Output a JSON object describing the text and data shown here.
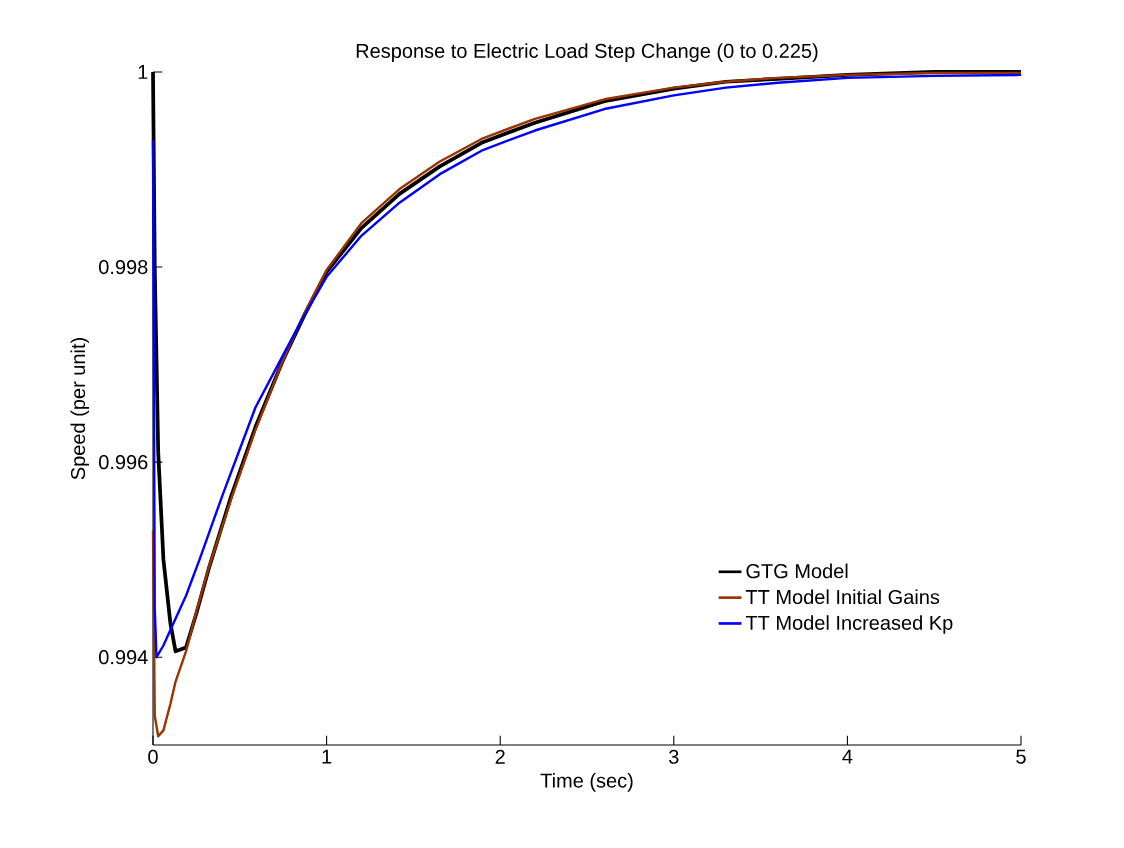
{
  "chart_data": {
    "type": "line",
    "title": "Response to Electric Load Step Change (0 to 0.225)",
    "xlabel": "Time (sec)",
    "ylabel": "Speed (per unit)",
    "xlim": [
      0,
      5
    ],
    "ylim": [
      0.9931,
      1
    ],
    "xticks": [
      0,
      1,
      2,
      3,
      4,
      5
    ],
    "yticks": [
      0.994,
      0.996,
      0.998,
      1
    ],
    "grid": false,
    "legend": "bottom right",
    "line_style": "solid",
    "marker": "none",
    "series": [
      {
        "name": "GTG Model",
        "color": "#000000",
        "x": [
          0,
          0.01,
          0.03,
          0.06,
          0.1,
          0.13,
          0.19,
          0.25,
          0.32,
          0.45,
          0.59,
          0.75,
          0.87,
          1.0,
          1.2,
          1.42,
          1.65,
          1.9,
          2.2,
          2.6,
          3.0,
          3.3,
          3.6,
          4.0,
          4.5,
          5.0
        ],
        "values": [
          1.0,
          0.998,
          0.9961,
          0.995,
          0.99435,
          0.99406,
          0.9941,
          0.99445,
          0.9949,
          0.99565,
          0.99636,
          0.99705,
          0.9975,
          0.99795,
          0.9984,
          0.99875,
          0.99903,
          0.99928,
          0.99948,
          0.9997,
          0.99983,
          0.9999,
          0.99993,
          0.99997,
          1.0,
          1.0
        ]
      },
      {
        "name": "TT Model Initial Gains",
        "color": "#993300",
        "x": [
          0,
          0.01,
          0.03,
          0.06,
          0.1,
          0.13,
          0.19,
          0.25,
          0.32,
          0.45,
          0.59,
          0.75,
          0.87,
          1.0,
          1.2,
          1.42,
          1.65,
          1.9,
          2.2,
          2.6,
          3.0,
          3.3,
          3.6,
          4.0,
          4.5,
          5.0
        ],
        "values": [
          0.9953,
          0.9934,
          0.99319,
          0.99325,
          0.99352,
          0.99375,
          0.99406,
          0.99447,
          0.99491,
          0.99562,
          0.99633,
          0.99705,
          0.99752,
          0.99797,
          0.99845,
          0.9988,
          0.99908,
          0.99932,
          0.99952,
          0.99972,
          0.99984,
          0.9999,
          0.99994,
          0.99997,
          0.99999,
          0.99999
        ]
      },
      {
        "name": "TT Model Increased Kp",
        "color": "#0000ff",
        "x": [
          0,
          0.01,
          0.02,
          0.06,
          0.1,
          0.19,
          0.27,
          0.4,
          0.59,
          0.75,
          0.87,
          1.0,
          1.2,
          1.42,
          1.65,
          1.9,
          2.2,
          2.6,
          3.0,
          3.3,
          3.6,
          4.0,
          4.5,
          5.0
        ],
        "values": [
          0.9993,
          0.9945,
          0.994,
          0.99412,
          0.99428,
          0.99463,
          0.99501,
          0.99566,
          0.99656,
          0.9971,
          0.9975,
          0.9979,
          0.99832,
          0.99866,
          0.99895,
          0.9992,
          0.9994,
          0.99962,
          0.99976,
          0.99984,
          0.99989,
          0.99994,
          0.99996,
          0.99997
        ]
      }
    ]
  }
}
